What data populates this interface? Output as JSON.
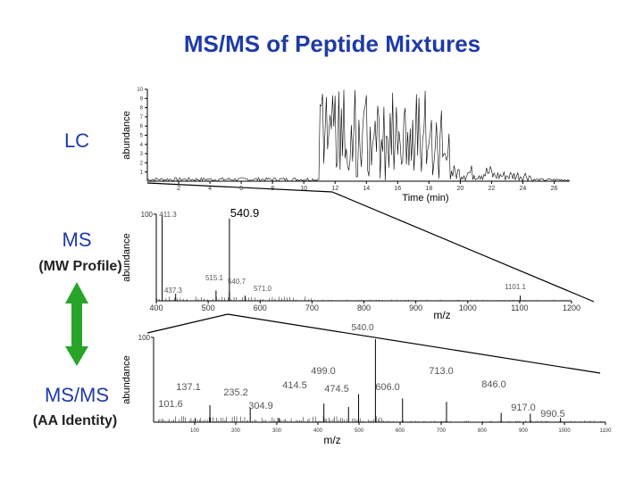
{
  "title": "MS/MS of Peptide Mixtures",
  "labels": {
    "lc": "LC",
    "ms": "MS",
    "ms_sub": "(MW Profile)",
    "msms": "MS/MS",
    "msms_sub": "(AA Identity)"
  },
  "colors": {
    "title": "#1f3aa8",
    "arrow": "#28a428",
    "trace": "#000000"
  },
  "chart_data": [
    {
      "type": "line",
      "title": "",
      "xlabel": "Time (min)",
      "ylabel": "abundance",
      "xlim": [
        0,
        27
      ],
      "ylim": [
        0,
        10
      ],
      "x_ticks": [
        "2",
        "4",
        "6",
        "8",
        "10",
        "12",
        "14",
        "16",
        "18",
        "20",
        "22",
        "24",
        "26"
      ],
      "y_ticks": [
        "1",
        "2",
        "3",
        "4",
        "5",
        "6",
        "7",
        "8",
        "9",
        "10"
      ],
      "annotations": []
    },
    {
      "type": "bar",
      "title": "",
      "xlabel": "m/z",
      "ylabel": "abundance",
      "xlim": [
        400,
        1200
      ],
      "ylim": [
        0,
        100
      ],
      "x_ticks": [
        "400",
        "500",
        "600",
        "700",
        "800",
        "900",
        "1000",
        "1100",
        "1200"
      ],
      "y_ticks": [
        "100"
      ],
      "peaks": [
        {
          "label": "411.3",
          "x": 411.3,
          "y": 100
        },
        {
          "label": "437.3",
          "x": 437.3,
          "y": 8
        },
        {
          "label": "515.1",
          "x": 515.1,
          "y": 12
        },
        {
          "label": "540.9",
          "x": 540.9,
          "y": 95
        },
        {
          "label": "540.7",
          "x": 540.7,
          "y": 10
        },
        {
          "label": "571.0",
          "x": 571.0,
          "y": 6
        },
        {
          "label": "1101.1",
          "x": 1101.1,
          "y": 6
        }
      ]
    },
    {
      "type": "bar",
      "title": "",
      "xlabel": "m/z",
      "ylabel": "abundance",
      "xlim": [
        0,
        1100
      ],
      "ylim": [
        0,
        100
      ],
      "x_ticks": [
        "100",
        "200",
        "300",
        "400",
        "500",
        "600",
        "700",
        "800",
        "900",
        "1000",
        "1100"
      ],
      "y_ticks": [
        "100"
      ],
      "peaks": [
        {
          "label": "101.6",
          "x": 101.6,
          "y": 5
        },
        {
          "label": "137.1",
          "x": 137.1,
          "y": 20
        },
        {
          "label": "235.2",
          "x": 235.2,
          "y": 17
        },
        {
          "label": "304.9",
          "x": 304.9,
          "y": 5
        },
        {
          "label": "414.5",
          "x": 414.5,
          "y": 22
        },
        {
          "label": "474.5",
          "x": 474.5,
          "y": 18
        },
        {
          "label": "499.0",
          "x": 499.0,
          "y": 33
        },
        {
          "label": "540.0",
          "x": 540.0,
          "y": 98
        },
        {
          "label": "606.0",
          "x": 606.0,
          "y": 28
        },
        {
          "label": "713.0",
          "x": 713.0,
          "y": 24
        },
        {
          "label": "846.0",
          "x": 846.0,
          "y": 11
        },
        {
          "label": "917.0",
          "x": 917.0,
          "y": 10
        },
        {
          "label": "990.5",
          "x": 990.5,
          "y": 5
        }
      ]
    }
  ]
}
